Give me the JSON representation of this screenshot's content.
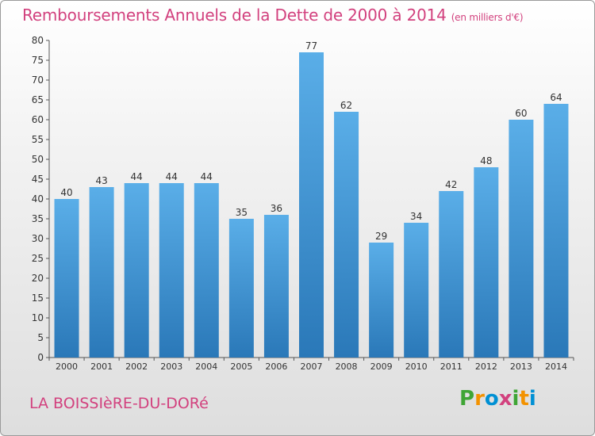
{
  "header": {
    "title": "Remboursements Annuels de la Dette de 2000 à 2014",
    "unit": "(en milliers d'€)"
  },
  "footer": {
    "commune": "LA BOISSIèRE-DU-DORé",
    "logo": {
      "text": "Proxiti",
      "letters": [
        "P",
        "r",
        "o",
        "x",
        "i",
        "t",
        "i"
      ],
      "colors": [
        "#3fa535",
        "#f39200",
        "#0090d4",
        "#d2417e",
        "#3fa535",
        "#f39200",
        "#0090d4"
      ]
    }
  },
  "colors": {
    "title": "#d2417e",
    "bar_light": "#5aaee8",
    "bar_dark": "#2a78b8",
    "axis": "#555555"
  },
  "chart_data": {
    "type": "bar",
    "title": "Remboursements Annuels de la Dette de 2000 à 2014",
    "xlabel": "",
    "ylabel": "",
    "categories": [
      "2000",
      "2001",
      "2002",
      "2003",
      "2004",
      "2005",
      "2006",
      "2007",
      "2008",
      "2009",
      "2010",
      "2011",
      "2012",
      "2013",
      "2014"
    ],
    "values": [
      40,
      43,
      44,
      44,
      44,
      35,
      36,
      77,
      62,
      29,
      34,
      42,
      48,
      60,
      64
    ],
    "ylim": [
      0,
      80
    ],
    "yticks": [
      0,
      5,
      10,
      15,
      20,
      25,
      30,
      35,
      40,
      45,
      50,
      55,
      60,
      65,
      70,
      75,
      80
    ],
    "grid": false,
    "data_labels": true
  }
}
